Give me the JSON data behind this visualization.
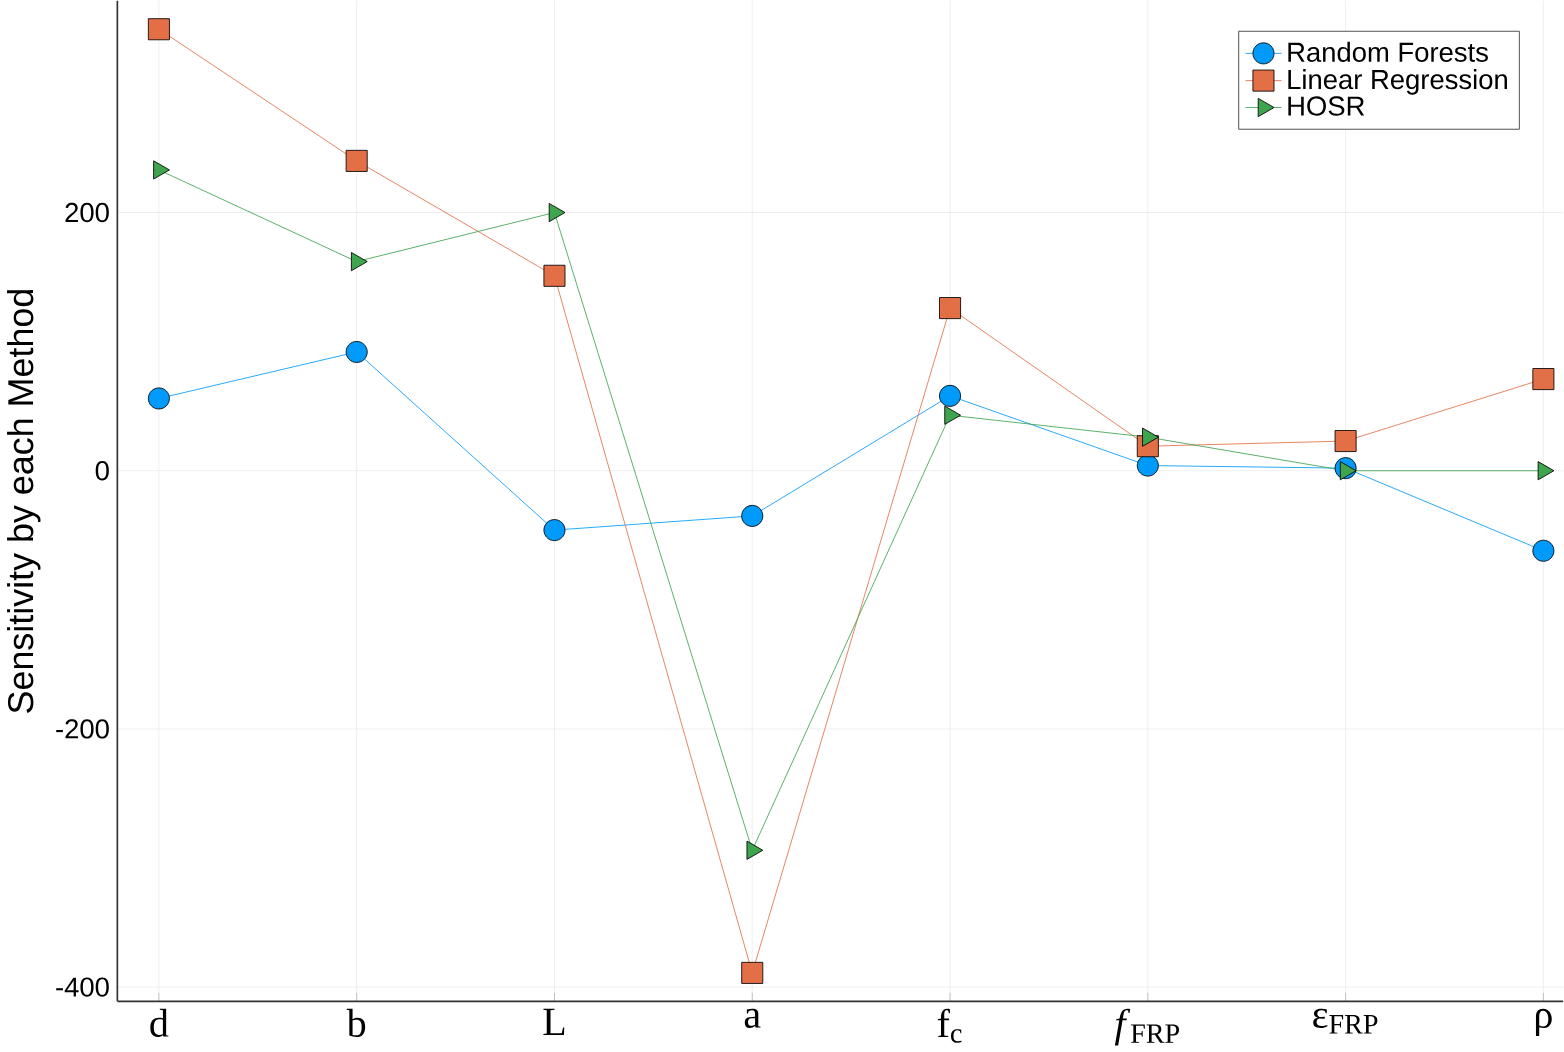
{
  "chart_data": {
    "type": "line",
    "ylabel": "Sensitivity by each Method",
    "categories": [
      "d",
      "b",
      "L",
      "a",
      "f$_{c}$",
      "*f*$_{FRP}$",
      "ε$_{FRP}$",
      "ρ"
    ],
    "series": [
      {
        "name": "Random Forests",
        "color": "#009afa",
        "marker": "circle",
        "values": [
          56,
          92,
          -46,
          -35,
          58,
          4,
          2,
          -62
        ]
      },
      {
        "name": "Linear Regression",
        "color": "#e36f47",
        "marker": "square",
        "values": [
          342,
          240,
          151,
          -389,
          126,
          19,
          23,
          71
        ]
      },
      {
        "name": "HOSR",
        "color": "#3ea44e",
        "marker": "triangle",
        "values": [
          233,
          162,
          200,
          -294,
          43,
          26,
          0,
          0
        ]
      }
    ],
    "ylim": [
      -411,
      364
    ],
    "yticks": [
      -400,
      -200,
      0,
      200
    ],
    "grid": true,
    "legend": "top right",
    "line_style": "solid"
  }
}
